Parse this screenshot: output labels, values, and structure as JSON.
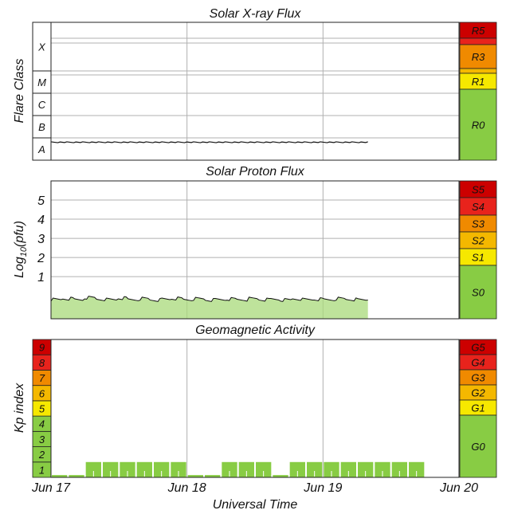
{
  "chart_data": [
    {
      "type": "line",
      "title": "Solar X-ray Flux",
      "ylabel": "Flare Class",
      "y_bands": [
        "A",
        "B",
        "C",
        "M",
        "X"
      ],
      "scale_levels": [
        {
          "label": "R5",
          "color": "#cc0000"
        },
        {
          "label": "",
          "color": "#e8231c"
        },
        {
          "label": "R3",
          "color": "#f08a00"
        },
        {
          "label": "",
          "color": "#f4b800"
        },
        {
          "label": "R1",
          "color": "#f6e800"
        },
        {
          "label": "R0",
          "color": "#88cc44"
        }
      ],
      "series": [
        {
          "values_flare_class": [
            "A",
            "A",
            "A",
            "A",
            "A",
            "A",
            "A",
            "A",
            "A",
            "A",
            "A",
            "A",
            "A",
            "A",
            "A",
            "A",
            "A",
            "A",
            "A",
            "A",
            "A",
            "A",
            "A",
            "A",
            "A",
            "A",
            "A",
            "A",
            "A",
            "A"
          ]
        }
      ],
      "data_end_fraction_of_day": 2.33
    },
    {
      "type": "area",
      "title": "Solar Proton Flux",
      "ylabel": "Log10(pfu)",
      "ylabel_main": "Log",
      "ylabel_sub": "10",
      "ylabel_tail": "(pfu)",
      "yticks": [
        "1",
        "2",
        "3",
        "4",
        "5"
      ],
      "ylim": [
        -1.2,
        6
      ],
      "scale_levels": [
        {
          "label": "S5",
          "color": "#cc0000"
        },
        {
          "label": "S4",
          "color": "#e8231c"
        },
        {
          "label": "S3",
          "color": "#f08a00"
        },
        {
          "label": "S2",
          "color": "#f4b800"
        },
        {
          "label": "S1",
          "color": "#f6e800"
        },
        {
          "label": "S0",
          "color": "#88cc44"
        }
      ],
      "series": [
        {
          "values": [
            -0.2,
            -0.15,
            -0.2,
            -0.1,
            -0.18,
            -0.2,
            -0.12,
            -0.2,
            -0.15,
            -0.22,
            -0.18,
            -0.14,
            -0.2,
            -0.16,
            -0.22,
            -0.2,
            -0.17,
            -0.2,
            -0.15,
            -0.2,
            -0.18,
            -0.22,
            -0.16,
            -0.2,
            -0.18,
            -0.2,
            -0.15,
            -0.19,
            -0.21,
            -0.18
          ]
        }
      ]
    },
    {
      "type": "bar",
      "title": "Geomagnetic Activity",
      "ylabel": "Kp index",
      "ylim": [
        0,
        9
      ],
      "yticks": [
        "1",
        "2",
        "3",
        "4",
        "5",
        "6",
        "7",
        "8",
        "9"
      ],
      "ytick_colors": [
        "#88cc44",
        "#88cc44",
        "#88cc44",
        "#88cc44",
        "#f6e800",
        "#f4b800",
        "#f08a00",
        "#e8231c",
        "#cc0000"
      ],
      "scale_levels": [
        {
          "label": "G5",
          "color": "#cc0000"
        },
        {
          "label": "G4",
          "color": "#e8231c"
        },
        {
          "label": "G3",
          "color": "#f08a00"
        },
        {
          "label": "G2",
          "color": "#f4b800"
        },
        {
          "label": "G1",
          "color": "#f6e800"
        },
        {
          "label": "G0",
          "color": "#88cc44"
        }
      ],
      "values": [
        0.15,
        0.15,
        1,
        1,
        1,
        1,
        1,
        1,
        0.15,
        0.15,
        1,
        1,
        1,
        0.15,
        1,
        1,
        1,
        1,
        1,
        1,
        1,
        1
      ],
      "bar_color": "#88cc44"
    }
  ],
  "x_axis": {
    "label": "Universal Time",
    "ticks": [
      "Jun 17",
      "Jun 18",
      "Jun 19",
      "Jun 20"
    ]
  }
}
